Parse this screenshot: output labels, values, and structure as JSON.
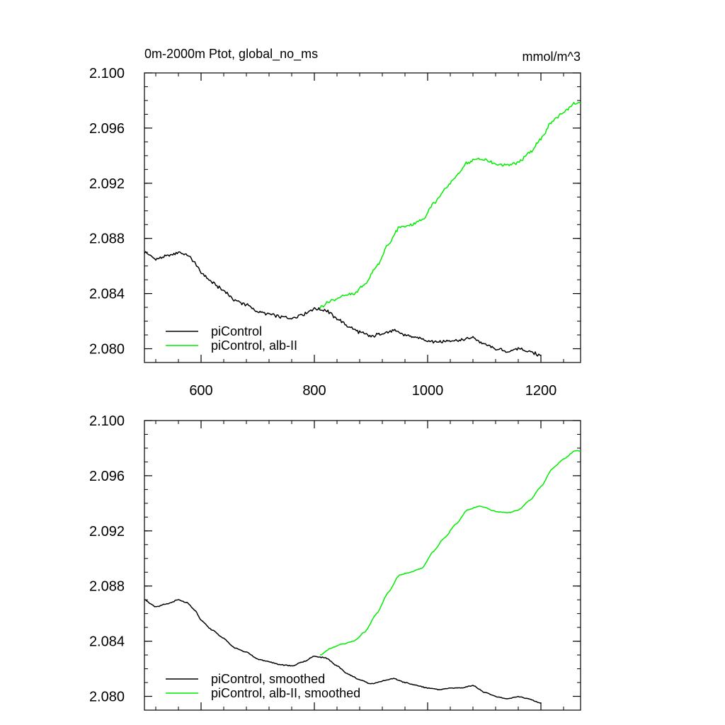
{
  "chart_data": [
    {
      "type": "line",
      "title": "0m-2000m Ptot, global_no_ms",
      "units": "mmol/m^3",
      "xlabel": "",
      "ylabel": "",
      "xlim": [
        500,
        1270
      ],
      "ylim": [
        2.079,
        2.1
      ],
      "x_ticks": [
        600,
        800,
        1000,
        1200
      ],
      "x_tick_labels": [
        "600",
        "800",
        "1000",
        "1200"
      ],
      "y_ticks": [
        2.08,
        2.084,
        2.088,
        2.092,
        2.096,
        2.1
      ],
      "y_tick_labels": [
        "2.080",
        "2.084",
        "2.088",
        "2.092",
        "2.096",
        "2.100"
      ],
      "legend_position": "bottom-left",
      "series": [
        {
          "name": "piControl",
          "color": "#000000",
          "x": [
            500,
            520,
            540,
            560,
            575,
            590,
            600,
            620,
            640,
            660,
            680,
            700,
            720,
            740,
            760,
            780,
            800,
            820,
            840,
            860,
            880,
            900,
            920,
            940,
            960,
            980,
            1000,
            1020,
            1040,
            1060,
            1080,
            1100,
            1120,
            1140,
            1160,
            1180,
            1200
          ],
          "y": [
            2.087,
            2.0865,
            2.0867,
            2.087,
            2.0868,
            2.0862,
            2.0855,
            2.0848,
            2.0842,
            2.0835,
            2.0832,
            2.0827,
            2.0825,
            2.0823,
            2.0822,
            2.0825,
            2.0829,
            2.0828,
            2.0822,
            2.0816,
            2.0812,
            2.0809,
            2.0811,
            2.0813,
            2.081,
            2.0808,
            2.0806,
            2.0805,
            2.0806,
            2.0806,
            2.0808,
            2.0803,
            2.08,
            2.0798,
            2.08,
            2.0798,
            2.0795
          ],
          "jitter": 0.00014
        },
        {
          "name": "piControl, alb-II",
          "color": "#00ee00",
          "x": [
            810,
            830,
            850,
            870,
            890,
            910,
            930,
            950,
            970,
            990,
            1010,
            1030,
            1050,
            1070,
            1090,
            1100,
            1120,
            1140,
            1160,
            1180,
            1200,
            1220,
            1240,
            1260,
            1270
          ],
          "y": [
            2.083,
            2.0835,
            2.0838,
            2.084,
            2.0847,
            2.086,
            2.0875,
            2.0888,
            2.089,
            2.0893,
            2.0905,
            2.0915,
            2.0925,
            2.0935,
            2.0938,
            2.0937,
            2.0934,
            2.0933,
            2.0935,
            2.0942,
            2.0952,
            2.0965,
            2.0972,
            2.0978,
            2.0978
          ],
          "jitter": 0.00014
        }
      ]
    },
    {
      "type": "line",
      "title": "",
      "units": "",
      "xlabel": "",
      "ylabel": "",
      "xlim": [
        500,
        1270
      ],
      "ylim": [
        2.079,
        2.1
      ],
      "x_ticks": [
        600,
        800,
        1000,
        1200
      ],
      "x_tick_labels": [],
      "y_ticks": [
        2.08,
        2.084,
        2.088,
        2.092,
        2.096,
        2.1
      ],
      "y_tick_labels": [
        "2.080",
        "2.084",
        "2.088",
        "2.092",
        "2.096",
        "2.100"
      ],
      "legend_position": "bottom-left",
      "series": [
        {
          "name": "piControl, smoothed",
          "color": "#000000",
          "x": [
            500,
            520,
            540,
            560,
            575,
            590,
            600,
            620,
            640,
            660,
            680,
            700,
            720,
            740,
            760,
            780,
            800,
            820,
            840,
            860,
            880,
            900,
            920,
            940,
            960,
            980,
            1000,
            1020,
            1040,
            1060,
            1080,
            1100,
            1120,
            1140,
            1160,
            1180,
            1200
          ],
          "y": [
            2.087,
            2.0865,
            2.0867,
            2.087,
            2.0868,
            2.0862,
            2.0855,
            2.0848,
            2.0842,
            2.0835,
            2.0832,
            2.0827,
            2.0825,
            2.0823,
            2.0822,
            2.0825,
            2.0829,
            2.0828,
            2.0822,
            2.0816,
            2.0812,
            2.0809,
            2.0811,
            2.0813,
            2.081,
            2.0808,
            2.0806,
            2.0805,
            2.0806,
            2.0806,
            2.0808,
            2.0803,
            2.08,
            2.0798,
            2.08,
            2.0798,
            2.0795
          ],
          "jitter": 4e-05
        },
        {
          "name": "piControl, alb-II, smoothed",
          "color": "#00ee00",
          "x": [
            810,
            830,
            850,
            870,
            890,
            910,
            930,
            950,
            970,
            990,
            1010,
            1030,
            1050,
            1070,
            1090,
            1100,
            1120,
            1140,
            1160,
            1180,
            1200,
            1220,
            1240,
            1260,
            1270
          ],
          "y": [
            2.083,
            2.0835,
            2.0838,
            2.084,
            2.0847,
            2.086,
            2.0875,
            2.0888,
            2.089,
            2.0893,
            2.0905,
            2.0915,
            2.0925,
            2.0935,
            2.0938,
            2.0937,
            2.0934,
            2.0933,
            2.0935,
            2.0942,
            2.0952,
            2.0965,
            2.0972,
            2.0978,
            2.0978
          ],
          "jitter": 4e-05
        }
      ]
    }
  ]
}
